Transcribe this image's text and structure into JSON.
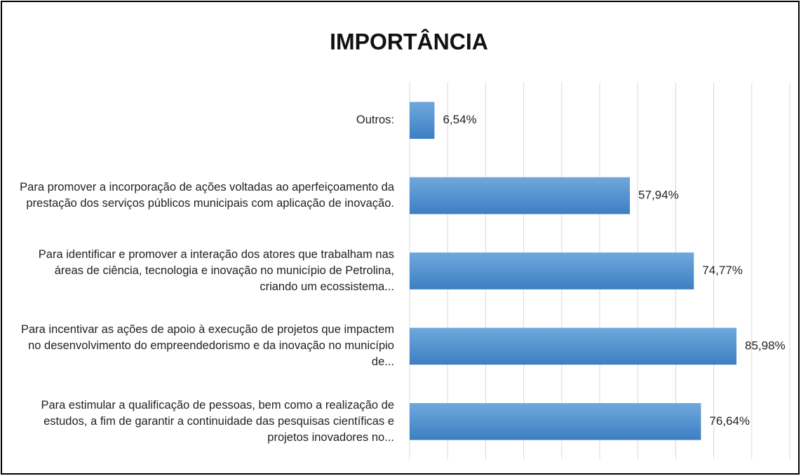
{
  "chart_data": {
    "type": "barh",
    "title": "IMPORTÂNCIA",
    "categories": [
      "Outros:",
      "Para promover a incorporação de ações voltadas ao aperfeiçoamento da prestação dos serviços públicos municipais com aplicação de inovação.",
      "Para identificar e promover a interação dos atores que trabalham nas áreas de ciência, tecnologia e inovação no município de Petrolina, criando um ecossistema...",
      "Para incentivar as ações de apoio à execução de projetos que impactem no desenvolvimento do empreendedorismo e da inovação no município de...",
      "Para estimular a qualificação de pessoas, bem como a realização de estudos, a fim de garantir a continuidade das pesquisas científicas e projetos inovadores no..."
    ],
    "values": [
      6.54,
      57.94,
      74.77,
      85.98,
      76.64
    ],
    "value_labels": [
      "6,54%",
      "57,94%",
      "74,77%",
      "85,98%",
      "76,64%"
    ],
    "color": "#5b9bd5",
    "xlim": [
      0,
      100
    ],
    "xticks": [
      0,
      10,
      20,
      30,
      40,
      50,
      60,
      70,
      80,
      90,
      100
    ],
    "grid": true
  }
}
